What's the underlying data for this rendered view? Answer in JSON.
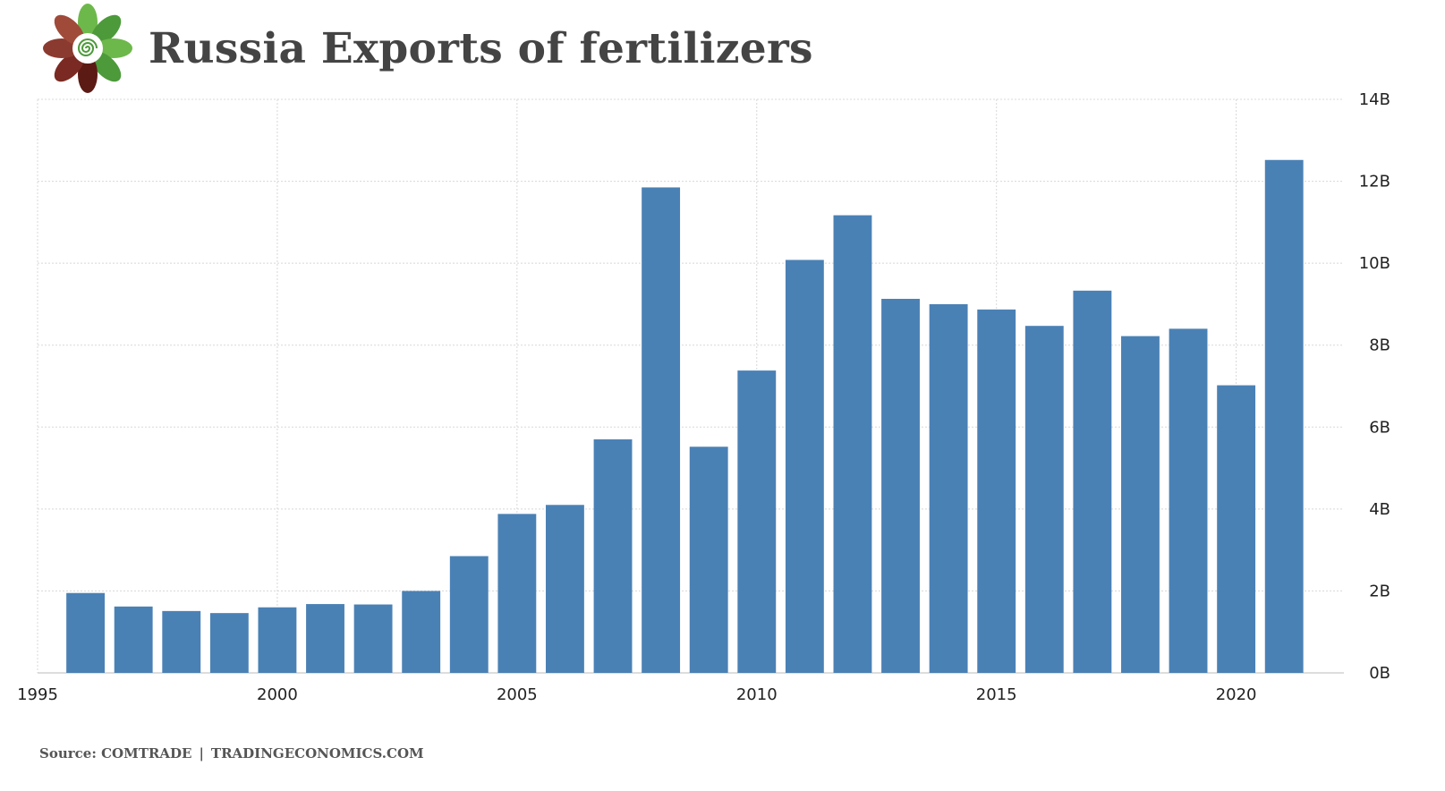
{
  "header": {
    "title": "Russia Exports of fertilizers"
  },
  "logo": {
    "icon": "flower-logo-icon",
    "colors": [
      "#4c9a3a",
      "#6db84b",
      "#8b3a2f",
      "#5c1a14"
    ]
  },
  "source": {
    "label": "Source:",
    "provider": "COMTRADE",
    "separator": "|",
    "site": "TRADINGECONOMICS.COM"
  },
  "chart_data": {
    "type": "bar",
    "title": "Russia Exports of fertilizers",
    "xlabel": "",
    "ylabel": "",
    "x": [
      1996,
      1997,
      1998,
      1999,
      2000,
      2001,
      2002,
      2003,
      2004,
      2005,
      2006,
      2007,
      2008,
      2009,
      2010,
      2011,
      2012,
      2013,
      2014,
      2015,
      2016,
      2017,
      2018,
      2019,
      2020,
      2021
    ],
    "values": [
      1.95,
      1.62,
      1.51,
      1.46,
      1.6,
      1.68,
      1.67,
      2.0,
      2.85,
      3.88,
      4.1,
      5.7,
      11.85,
      5.52,
      7.38,
      10.08,
      11.17,
      9.13,
      9.0,
      8.87,
      8.47,
      9.33,
      8.22,
      8.4,
      7.02,
      12.52
    ],
    "unit": "B",
    "xlim": [
      1995,
      2021.5
    ],
    "ylim": [
      0,
      14
    ],
    "xticks": [
      "1995",
      "2000",
      "2005",
      "2010",
      "2015",
      "2020"
    ],
    "yticks": [
      "0B",
      "2B",
      "4B",
      "6B",
      "8B",
      "10B",
      "12B",
      "14B"
    ],
    "bar_color": "#4a81b5",
    "grid": true,
    "y_axis_position": "right"
  }
}
